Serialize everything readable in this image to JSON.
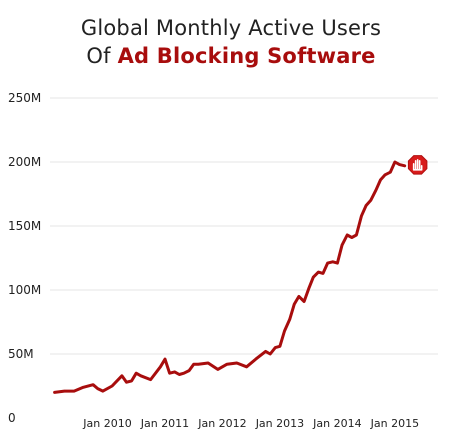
{
  "title": {
    "line1": "Global Monthly Active Users",
    "line2_prefix": "Of ",
    "line2_highlight": "Ad Blocking Software"
  },
  "colors": {
    "line": "#a80d0d",
    "highlight": "#a80d0d",
    "grid": "#e6e6e6",
    "stop_icon_fill": "#d81b1b",
    "stop_icon_stroke": "#ffffff"
  },
  "end_marker_icon": "stop-hand-icon",
  "chart_data": {
    "type": "line",
    "title": "Global Monthly Active Users Of Ad Blocking Software",
    "xlabel": "",
    "ylabel": "",
    "xlim": [
      2009.0,
      2015.75
    ],
    "ylim": [
      0,
      250
    ],
    "grid": true,
    "x_ticks": [
      {
        "value": 2010.0,
        "label": "Jan 2010"
      },
      {
        "value": 2011.0,
        "label": "Jan 2011"
      },
      {
        "value": 2012.0,
        "label": "Jan 2012"
      },
      {
        "value": 2013.0,
        "label": "Jan 2013"
      },
      {
        "value": 2014.0,
        "label": "Jan 2014"
      },
      {
        "value": 2015.0,
        "label": "Jan 2015"
      }
    ],
    "y_ticks": [
      {
        "value": 0,
        "label": "0"
      },
      {
        "value": 50,
        "label": "50M"
      },
      {
        "value": 100,
        "label": "100M"
      },
      {
        "value": 150,
        "label": "150M"
      },
      {
        "value": 200,
        "label": "200M"
      },
      {
        "value": 250,
        "label": "250M"
      }
    ],
    "series": [
      {
        "x": [
          2009.08,
          2009.25,
          2009.42,
          2009.58,
          2009.75,
          2009.83,
          2009.92,
          2010.08,
          2010.25,
          2010.33,
          2010.42,
          2010.5,
          2010.58,
          2010.75,
          2010.92,
          2011.0,
          2011.08,
          2011.17,
          2011.25,
          2011.33,
          2011.42,
          2011.5,
          2011.58,
          2011.75,
          2011.92,
          2012.0,
          2012.08,
          2012.25,
          2012.42,
          2012.58,
          2012.75,
          2012.83,
          2012.92,
          2013.0,
          2013.08,
          2013.17,
          2013.25,
          2013.33,
          2013.42,
          2013.5,
          2013.58,
          2013.67,
          2013.75,
          2013.83,
          2013.92,
          2014.0,
          2014.08,
          2014.17,
          2014.25,
          2014.33,
          2014.42,
          2014.5,
          2014.58,
          2014.67,
          2014.75,
          2014.83,
          2014.92,
          2015.0,
          2015.08,
          2015.17
        ],
        "y": [
          20,
          21,
          21,
          24,
          26,
          23,
          21,
          25,
          33,
          28,
          29,
          35,
          33,
          30,
          40,
          46,
          35,
          36,
          34,
          35,
          37,
          42,
          42,
          43,
          38,
          40,
          42,
          43,
          40,
          46,
          52,
          50,
          55,
          56,
          68,
          77,
          89,
          95,
          91,
          101,
          110,
          114,
          113,
          121,
          122,
          121,
          135,
          143,
          141,
          143,
          158,
          166,
          170,
          178,
          186,
          190,
          192,
          200,
          198,
          197
        ]
      }
    ]
  }
}
